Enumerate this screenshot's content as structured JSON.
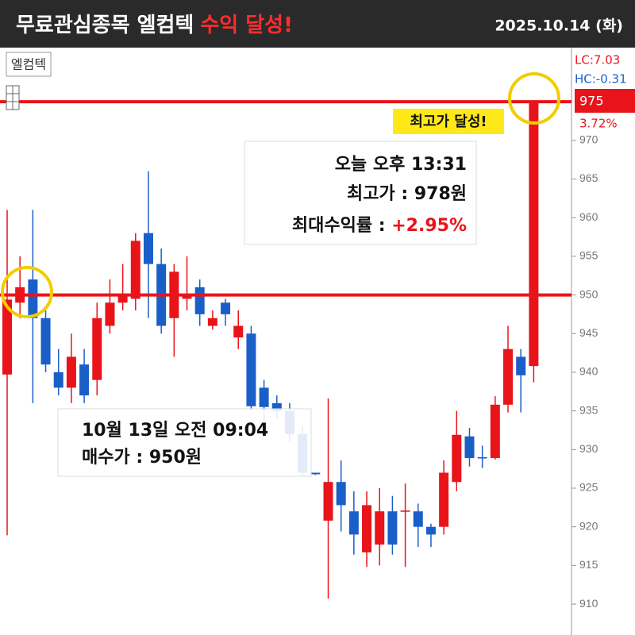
{
  "header": {
    "title": "무료관심종목 엘컴텍",
    "highlight": "수익 달성!",
    "date": "2025.10.14 (화)"
  },
  "chart_data": {
    "type": "candlestick",
    "name": "엘컴텍",
    "categories": [
      null,
      null,
      null,
      null,
      null,
      null,
      null,
      null,
      null,
      null,
      null,
      null,
      null,
      null,
      null,
      null,
      null,
      null,
      null,
      null,
      null,
      null,
      null,
      null,
      null,
      null,
      null,
      null,
      null,
      null,
      null,
      null,
      null,
      null,
      null,
      null,
      null,
      null,
      null,
      null,
      null,
      null
    ],
    "open": [
      939.7,
      949,
      952,
      947,
      940,
      938,
      941,
      939,
      946,
      949,
      949.5,
      958,
      954,
      947,
      949.5,
      951,
      946,
      949,
      944.5,
      945,
      938,
      936,
      935,
      932,
      927,
      920.8,
      925.8,
      922,
      916.7,
      917.7,
      922,
      922,
      922,
      920,
      920,
      925.8,
      931.7,
      929,
      928.9,
      935.8,
      942,
      940.8
    ],
    "high": [
      961,
      955,
      961,
      948,
      943,
      945,
      943,
      949,
      952,
      954,
      958,
      966,
      956,
      954,
      955,
      952,
      948,
      949.5,
      948,
      946,
      939,
      937,
      936,
      933,
      927,
      936.6,
      928.6,
      924.6,
      924.6,
      925,
      924,
      925.6,
      923,
      920.4,
      928.6,
      935,
      932.8,
      930.5,
      936.9,
      946,
      943,
      975
    ],
    "low": [
      918.9,
      947,
      936,
      940,
      937,
      936,
      936,
      937,
      945,
      948,
      948,
      947,
      945,
      942,
      948,
      946,
      945.5,
      946,
      943,
      935,
      933,
      934,
      931,
      926.5,
      926.7,
      910.7,
      919.4,
      916.4,
      914.8,
      915,
      916.4,
      914.8,
      917.4,
      917.4,
      919,
      924.6,
      927.8,
      927.6,
      928.7,
      934.8,
      934.8,
      938.7
    ],
    "close": [
      949.4,
      951,
      947,
      941,
      938,
      942,
      937,
      947,
      949,
      950,
      957,
      954,
      946,
      953,
      950,
      947.5,
      947,
      947.5,
      946,
      935.6,
      935.5,
      935,
      932,
      927,
      926.8,
      925.8,
      922.8,
      919,
      922.8,
      922,
      917.7,
      922.1,
      920,
      919,
      927,
      931.9,
      928.9,
      928.9,
      935.8,
      943,
      939.6,
      975
    ],
    "up_color": "#e8141a",
    "down_color": "#1a5fc8",
    "ylim": [
      906,
      982
    ],
    "yticks": [
      910,
      915,
      920,
      925,
      930,
      935,
      940,
      945,
      950,
      955,
      960,
      965,
      970
    ],
    "reference_lines": [
      975,
      950
    ],
    "indicators": {
      "lc": "LC:7.03",
      "hc": "HC:-0.31",
      "price": "975",
      "change": "3.72%"
    },
    "annotations": {
      "peak_badge": "최고가 달성!",
      "sell_time": "오늘 오후 13:31",
      "sell_price": "최고가 : 978원",
      "max_return_label": "최대수익률 : ",
      "max_return": "+2.95%",
      "buy_time": "10월 13일 오전 09:04",
      "buy_price": "매수가 : 950원"
    }
  }
}
